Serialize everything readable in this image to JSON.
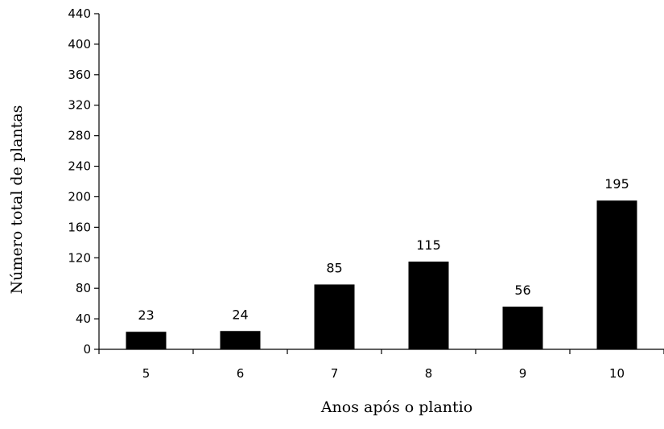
{
  "chart_data": {
    "type": "bar",
    "categories": [
      "5",
      "6",
      "7",
      "8",
      "9",
      "10"
    ],
    "values": [
      23,
      24,
      85,
      115,
      56,
      195
    ],
    "data_labels": [
      "23",
      "24",
      "85",
      "115",
      "56",
      "195"
    ],
    "xlabel": "Anos após o plantio",
    "ylabel": "Número total de plantas",
    "ylim": [
      0,
      440
    ],
    "yticks": [
      0,
      40,
      80,
      120,
      160,
      200,
      240,
      280,
      320,
      360,
      400,
      440
    ],
    "grid": false,
    "legend": "none",
    "bar_color": "#000000"
  }
}
